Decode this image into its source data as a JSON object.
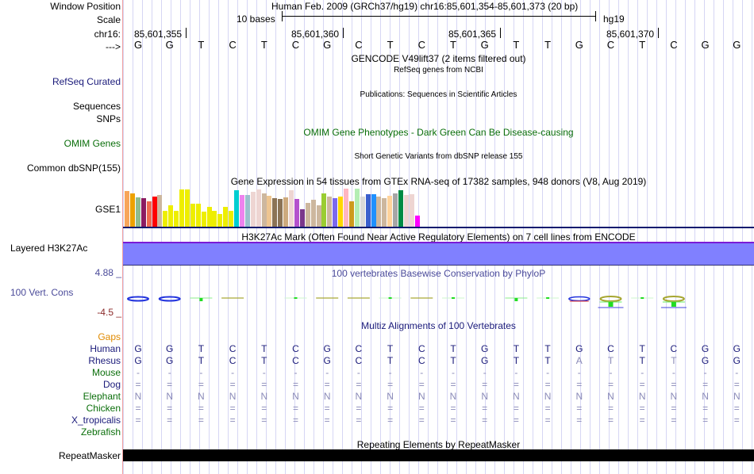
{
  "header": {
    "window_position_label": "Window Position",
    "title": "Human Feb. 2009 (GRCh37/hg19)   chr16:85,601,354-85,601,373 (20 bp)",
    "scale_label": "Scale",
    "scale_text": "10 bases",
    "assembly": "hg19",
    "chrom_label": "chr16:",
    "strand_label": "--->",
    "positions": [
      "85,601,355",
      "85,601,360",
      "85,601,365",
      "85,601,370"
    ]
  },
  "sequence": [
    "G",
    "G",
    "T",
    "C",
    "T",
    "C",
    "G",
    "C",
    "T",
    "C",
    "T",
    "G",
    "T",
    "T",
    "G",
    "C",
    "T",
    "C",
    "G",
    "G"
  ],
  "tracks": {
    "gencode": {
      "title": "GENCODE V49lift37 (2 items filtered out)"
    },
    "refseq": {
      "label": "RefSeq Curated",
      "title": "RefSeq genes from NCBI"
    },
    "pubs": {
      "label": "Sequences",
      "title": "Publications: Sequences in Scientific Articles"
    },
    "snps_pub": {
      "label": "SNPs"
    },
    "omim": {
      "label": "OMIM Genes",
      "title": "OMIM Gene Phenotypes - Dark Green Can Be Disease-causing",
      "color": "#0a6e0a"
    },
    "dbsnp": {
      "label": "Common dbSNP(155)",
      "title": "Short Genetic Variants from dbSNP release 155"
    },
    "gtex": {
      "label": "GSE1",
      "title": "Gene Expression in 54 tissues from GTEx RNA-seq of 17382 samples, 948 donors (V8, Aug 2019)",
      "bars": [
        {
          "color": "#f7a55a",
          "level": 0.93
        },
        {
          "color": "#eda100",
          "level": 0.88
        },
        {
          "color": "#8fbc8f",
          "level": 0.78
        },
        {
          "color": "#8b1c62",
          "level": 0.75
        },
        {
          "color": "#ee6a50",
          "level": 0.66
        },
        {
          "color": "#ff0000",
          "level": 0.8
        },
        {
          "color": "#cdb79e",
          "level": 0.83
        },
        {
          "color": "#eeee00",
          "level": 0.42
        },
        {
          "color": "#eeee00",
          "level": 0.56
        },
        {
          "color": "#eeee00",
          "level": 0.42
        },
        {
          "color": "#eeee00",
          "level": 0.97
        },
        {
          "color": "#eeee00",
          "level": 0.97
        },
        {
          "color": "#eeee00",
          "level": 0.61
        },
        {
          "color": "#eeee00",
          "level": 0.61
        },
        {
          "color": "#eeee00",
          "level": 0.39
        },
        {
          "color": "#eeee00",
          "level": 0.52
        },
        {
          "color": "#eeee00",
          "level": 0.42
        },
        {
          "color": "#eeee00",
          "level": 0.34
        },
        {
          "color": "#eeee00",
          "level": 0.52
        },
        {
          "color": "#eeee00",
          "level": 0.42
        },
        {
          "color": "#00ced1",
          "level": 0.95
        },
        {
          "color": "#ee82ee",
          "level": 0.84
        },
        {
          "color": "#9ac0cd",
          "level": 0.84
        },
        {
          "color": "#eed5d2",
          "level": 0.91
        },
        {
          "color": "#eed5d2",
          "level": 0.97
        },
        {
          "color": "#cdb79e",
          "level": 0.88
        },
        {
          "color": "#eec591",
          "level": 0.81
        },
        {
          "color": "#8b7355",
          "level": 0.75
        },
        {
          "color": "#8b7355",
          "level": 0.73
        },
        {
          "color": "#cdaa7d",
          "level": 0.78
        },
        {
          "color": "#eed5d2",
          "level": 0.95
        },
        {
          "color": "#b452cd",
          "level": 0.73
        },
        {
          "color": "#7a378b",
          "level": 0.45
        },
        {
          "color": "#cdb79e",
          "level": 0.63
        },
        {
          "color": "#cdb79e",
          "level": 0.71
        },
        {
          "color": "#cdb79e",
          "level": 0.56
        },
        {
          "color": "#9acd32",
          "level": 0.88
        },
        {
          "color": "#cdb79e",
          "level": 0.79
        },
        {
          "color": "#7b68ee",
          "level": 0.76
        },
        {
          "color": "#ffd700",
          "level": 0.79
        },
        {
          "color": "#ffb6c1",
          "level": 1.0
        },
        {
          "color": "#cd9b1d",
          "level": 0.66
        },
        {
          "color": "#b4eeb4",
          "level": 1.0
        },
        {
          "color": "#d9d9d9",
          "level": 0.79
        },
        {
          "color": "#3a5fcd",
          "level": 0.86
        },
        {
          "color": "#1e90ff",
          "level": 0.86
        },
        {
          "color": "#cdb79e",
          "level": 0.79
        },
        {
          "color": "#cdb79e",
          "level": 0.76
        },
        {
          "color": "#ffd39b",
          "level": 0.82
        },
        {
          "color": "#a6a6a6",
          "level": 0.88
        },
        {
          "color": "#008b45",
          "level": 0.95
        },
        {
          "color": "#eed5d2",
          "level": 0.84
        },
        {
          "color": "#eed5d2",
          "level": 0.86
        },
        {
          "color": "#ff00ff",
          "level": 0.3
        }
      ]
    },
    "h3k27ac": {
      "label": "Layered H3K27Ac",
      "title": "H3K27Ac Mark (Often Found Near Active Regulatory Elements) on 7 cell lines from ENCODE",
      "color": "#8080ff"
    },
    "phylop": {
      "label": "100 Vert. Cons",
      "title": "100 vertebrates Basewise Conservation by PhyloP",
      "max": "4.88 _",
      "min": "-4.5 _"
    },
    "multiz": {
      "title": "Multiz Alignments of 100 Vertebrates",
      "gaps_label": "Gaps",
      "species": [
        {
          "name": "Human",
          "color": "navy",
          "row": [
            "G",
            "G",
            "T",
            "C",
            "T",
            "C",
            "G",
            "C",
            "T",
            "C",
            "T",
            "G",
            "T",
            "T",
            "G",
            "C",
            "T",
            "C",
            "G",
            "G"
          ]
        },
        {
          "name": "Rhesus",
          "color": "navy",
          "row": [
            "G",
            "G",
            "T",
            "C",
            "T",
            "C",
            "G",
            "C",
            "T",
            "C",
            "T",
            "G",
            "T",
            "T",
            "A",
            "T",
            "T",
            "T",
            "G",
            "G"
          ]
        },
        {
          "name": "Mouse",
          "color": "green",
          "row": [
            "-",
            "-",
            "-",
            "-",
            "-",
            "-",
            "-",
            "-",
            "-",
            "-",
            "-",
            "-",
            "-",
            "-",
            "-",
            "-",
            "-",
            "-",
            "-",
            "-"
          ]
        },
        {
          "name": "Dog",
          "color": "navy",
          "row": [
            "=",
            "=",
            "=",
            "=",
            "=",
            "=",
            "=",
            "=",
            "=",
            "=",
            "=",
            "=",
            "=",
            "=",
            "=",
            "=",
            "=",
            "=",
            "=",
            "="
          ]
        },
        {
          "name": "Elephant",
          "color": "green",
          "row": [
            "N",
            "N",
            "N",
            "N",
            "N",
            "N",
            "N",
            "N",
            "N",
            "N",
            "N",
            "N",
            "N",
            "N",
            "N",
            "N",
            "N",
            "N",
            "N",
            "N"
          ]
        },
        {
          "name": "Chicken",
          "color": "green",
          "row": [
            "=",
            "=",
            "=",
            "=",
            "=",
            "=",
            "=",
            "=",
            "=",
            "=",
            "=",
            "=",
            "=",
            "=",
            "=",
            "=",
            "=",
            "=",
            "=",
            "="
          ]
        },
        {
          "name": "X_tropicalis",
          "color": "navy",
          "row": [
            "=",
            "=",
            "=",
            "=",
            "=",
            "=",
            "=",
            "=",
            "=",
            "=",
            "=",
            "=",
            "=",
            "=",
            "=",
            "=",
            "=",
            "=",
            "=",
            "="
          ]
        },
        {
          "name": "Zebrafish",
          "color": "green",
          "row": []
        }
      ]
    },
    "rmsk": {
      "label": "RepeatMasker",
      "title": "Repeating Elements by RepeatMasker"
    }
  }
}
